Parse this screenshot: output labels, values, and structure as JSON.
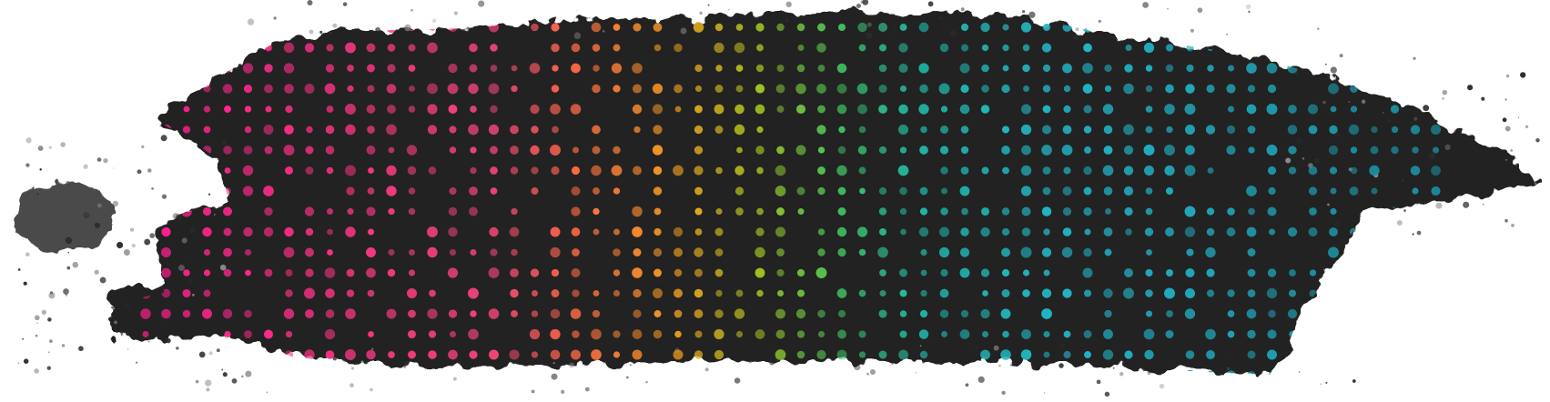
{
  "artwork": {
    "subject": "grunge-brush-stroke-with-halftone-dots",
    "background_color": "#ffffff",
    "stroke_color": "#232323",
    "dot_gradient_colors": [
      "#ff1f8e",
      "#f0457a",
      "#ff6b45",
      "#f2a01e",
      "#a8c41e",
      "#3fbf5f",
      "#1fb8a8",
      "#23b4c8",
      "#1a8fa0"
    ]
  }
}
